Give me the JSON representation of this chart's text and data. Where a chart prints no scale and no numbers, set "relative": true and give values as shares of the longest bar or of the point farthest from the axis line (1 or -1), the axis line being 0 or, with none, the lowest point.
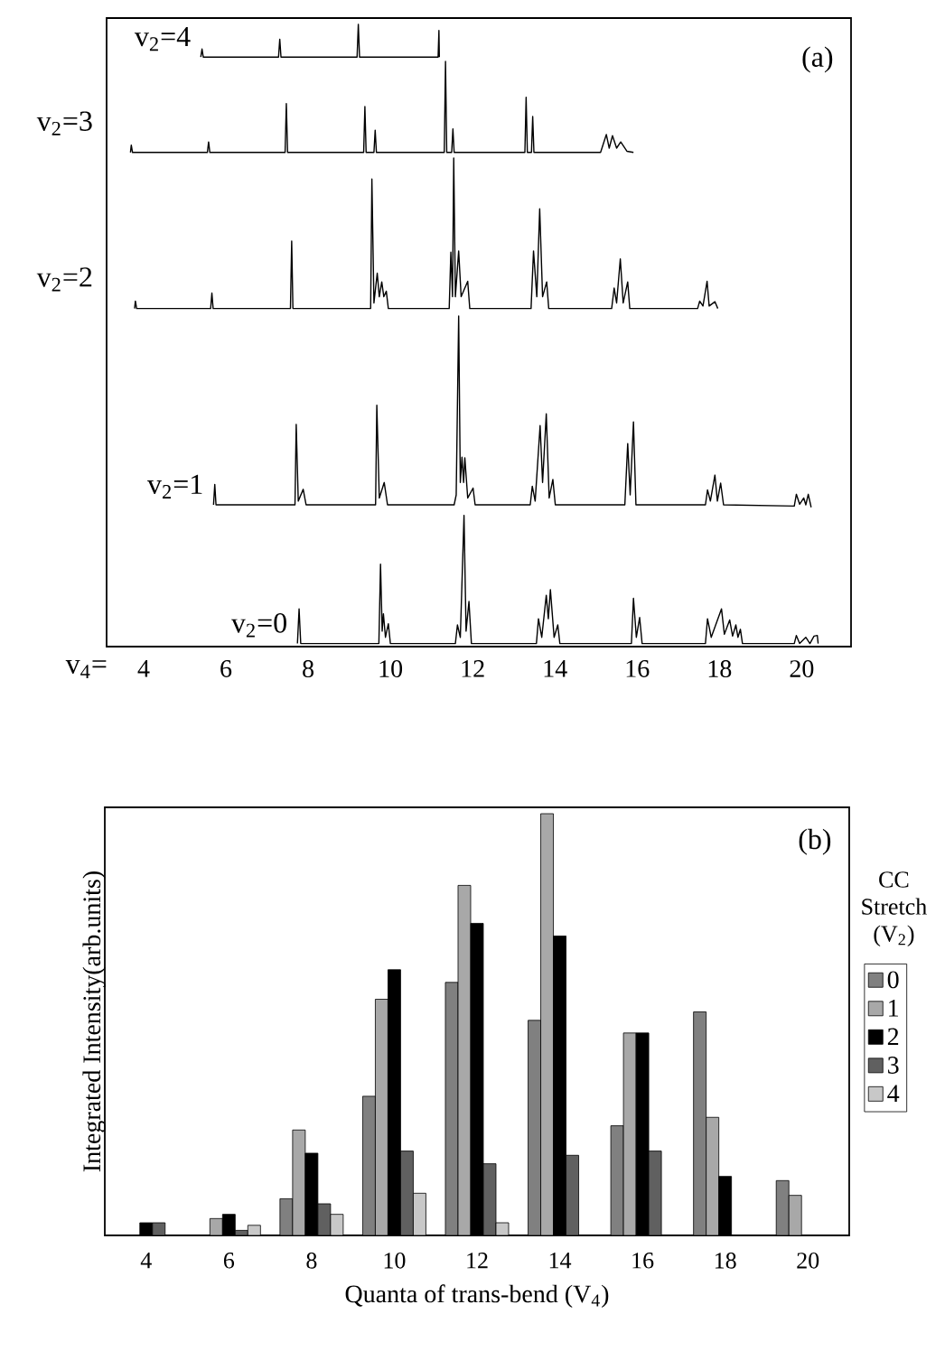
{
  "chart_data": [
    {
      "type": "line",
      "relative": true,
      "xlabel": "v$_{4}$=",
      "annotations": [
        "(a)"
      ],
      "xlim": [
        3.1,
        21.2
      ],
      "xticks": [
        4,
        6,
        8,
        10,
        12,
        14,
        16,
        18,
        20
      ],
      "series": [
        {
          "name": "v$_{2}$=4",
          "color": "#000000",
          "x": [
            5.39,
            5.42,
            5.45,
            7.28,
            7.31,
            7.34,
            9.19,
            9.22,
            9.25,
            11.16,
            11.18,
            11.19
          ],
          "values": [
            0.947,
            0.96,
            0.947,
            0.947,
            0.976,
            0.947,
            0.947,
            1.0,
            0.947,
            0.947,
            0.99,
            0.947
          ]
        },
        {
          "name": "v$_{2}$=3",
          "color": "#000000",
          "x": [
            3.68,
            3.7,
            3.73,
            5.55,
            5.58,
            5.61,
            7.44,
            7.47,
            7.5,
            9.35,
            9.38,
            9.41,
            9.6,
            9.63,
            9.66,
            11.31,
            11.34,
            11.37,
            11.49,
            11.52,
            11.55,
            13.27,
            13.3,
            13.33,
            13.43,
            13.46,
            13.49,
            15.11,
            15.25,
            15.32,
            15.4,
            15.5,
            15.6,
            15.75,
            15.91
          ],
          "values": [
            0.793,
            0.805,
            0.793,
            0.793,
            0.81,
            0.793,
            0.793,
            0.872,
            0.793,
            0.793,
            0.867,
            0.793,
            0.793,
            0.829,
            0.793,
            0.793,
            0.94,
            0.793,
            0.793,
            0.831,
            0.793,
            0.793,
            0.882,
            0.793,
            0.793,
            0.851,
            0.793,
            0.793,
            0.822,
            0.8,
            0.82,
            0.8,
            0.81,
            0.795,
            0.793
          ]
        },
        {
          "name": "v$_{2}$=2",
          "color": "#000000",
          "x": [
            3.78,
            3.8,
            3.83,
            5.63,
            5.66,
            5.69,
            7.57,
            7.6,
            7.63,
            9.52,
            9.55,
            9.6,
            9.68,
            9.73,
            9.79,
            9.84,
            9.9,
            9.95,
            11.43,
            11.47,
            11.51,
            11.54,
            11.58,
            11.66,
            11.72,
            11.88,
            11.93,
            13.42,
            13.48,
            13.56,
            13.63,
            13.7,
            13.8,
            13.85,
            15.38,
            15.44,
            15.5,
            15.59,
            15.66,
            15.77,
            15.82,
            17.47,
            17.52,
            17.6,
            17.7,
            17.75,
            17.89,
            17.96
          ],
          "values": [
            0.541,
            0.553,
            0.541,
            0.541,
            0.566,
            0.541,
            0.541,
            0.65,
            0.541,
            0.541,
            0.75,
            0.55,
            0.598,
            0.56,
            0.584,
            0.56,
            0.569,
            0.541,
            0.541,
            0.632,
            0.56,
            0.784,
            0.56,
            0.634,
            0.56,
            0.585,
            0.541,
            0.541,
            0.634,
            0.56,
            0.702,
            0.56,
            0.584,
            0.541,
            0.541,
            0.574,
            0.55,
            0.621,
            0.55,
            0.584,
            0.541,
            0.541,
            0.553,
            0.545,
            0.585,
            0.545,
            0.552,
            0.541
          ]
        },
        {
          "name": "v$_{2}$=1",
          "color": "#000000",
          "x": [
            5.7,
            5.73,
            5.76,
            7.68,
            7.71,
            7.76,
            7.88,
            7.95,
            9.64,
            9.67,
            9.73,
            9.85,
            9.93,
            11.55,
            11.6,
            11.66,
            11.7,
            11.74,
            11.78,
            11.81,
            11.88,
            12.01,
            12.06,
            13.4,
            13.45,
            13.52,
            13.64,
            13.7,
            13.79,
            13.86,
            13.95,
            14.01,
            15.7,
            15.77,
            15.83,
            15.91,
            15.97,
            17.66,
            17.71,
            17.78,
            17.89,
            17.95,
            18.03,
            18.1,
            19.82,
            19.87,
            19.95,
            20.05,
            20.1,
            20.16,
            20.23
          ],
          "values": [
            0.224,
            0.257,
            0.224,
            0.224,
            0.354,
            0.23,
            0.249,
            0.224,
            0.224,
            0.385,
            0.235,
            0.26,
            0.224,
            0.224,
            0.24,
            0.529,
            0.26,
            0.301,
            0.26,
            0.3,
            0.235,
            0.251,
            0.224,
            0.224,
            0.254,
            0.23,
            0.352,
            0.26,
            0.371,
            0.235,
            0.265,
            0.224,
            0.224,
            0.323,
            0.24,
            0.358,
            0.224,
            0.224,
            0.248,
            0.23,
            0.272,
            0.23,
            0.259,
            0.224,
            0.222,
            0.241,
            0.225,
            0.235,
            0.224,
            0.241,
            0.22
          ]
        },
        {
          "name": "v$_{2}$=0",
          "color": "#000000",
          "x": [
            7.74,
            7.78,
            7.82,
            9.72,
            9.76,
            9.8,
            9.83,
            9.88,
            9.95,
            10.0,
            11.58,
            11.63,
            11.7,
            11.79,
            11.84,
            11.91,
            11.97,
            13.55,
            13.6,
            13.68,
            13.79,
            13.84,
            13.89,
            13.98,
            14.07,
            14.12,
            15.86,
            15.91,
            15.98,
            16.06,
            16.12,
            17.66,
            17.71,
            17.8,
            18.05,
            18.12,
            18.25,
            18.32,
            18.4,
            18.45,
            18.51,
            18.56,
            19.82,
            19.87,
            19.95,
            20.1,
            20.2,
            20.3,
            20.38,
            20.4
          ],
          "values": [
            0,
            0.056,
            0,
            0,
            0.128,
            0.02,
            0.048,
            0.01,
            0.032,
            0,
            0,
            0.03,
            0.01,
            0.207,
            0.02,
            0.068,
            0,
            0,
            0.04,
            0.01,
            0.078,
            0.04,
            0.087,
            0.01,
            0.03,
            0,
            0,
            0.073,
            0.01,
            0.042,
            0,
            0,
            0.04,
            0.01,
            0.056,
            0.015,
            0.038,
            0.012,
            0.03,
            0.01,
            0.023,
            0,
            0,
            0.013,
            0,
            0.01,
            0,
            0.012,
            0.013,
            0
          ]
        }
      ]
    },
    {
      "type": "bar",
      "relative": true,
      "xlabel": "Quanta of trans-bend (V$_{4}$)",
      "ylabel": "Integrated Intensity(arb.units)",
      "legend_title": "CC Stretch (V$_{2}$)",
      "legend": "right",
      "annotations": [
        "(b)"
      ],
      "categories": [
        "4",
        "6",
        "8",
        "10",
        "12",
        "14",
        "16",
        "18",
        "20"
      ],
      "series": [
        {
          "name": "0",
          "color": "#808080",
          "values": [
            null,
            null,
            0.087,
            0.33,
            0.6,
            0.51,
            0.26,
            0.53,
            0.13
          ]
        },
        {
          "name": "1",
          "color": "#a8a8a8",
          "values": [
            null,
            0.04,
            0.25,
            0.56,
            0.83,
            1.0,
            0.48,
            0.28,
            0.095
          ]
        },
        {
          "name": "2",
          "color": "#000000",
          "values": [
            0.03,
            0.05,
            0.195,
            0.63,
            0.74,
            0.71,
            0.48,
            0.14,
            null
          ]
        },
        {
          "name": "3",
          "color": "#606060",
          "values": [
            0.03,
            0.012,
            0.075,
            0.2,
            0.17,
            0.19,
            0.2,
            null,
            null
          ]
        },
        {
          "name": "4",
          "color": "#c8c8c8",
          "values": [
            null,
            0.024,
            0.05,
            0.1,
            0.03,
            null,
            null,
            null,
            null
          ]
        }
      ]
    }
  ]
}
